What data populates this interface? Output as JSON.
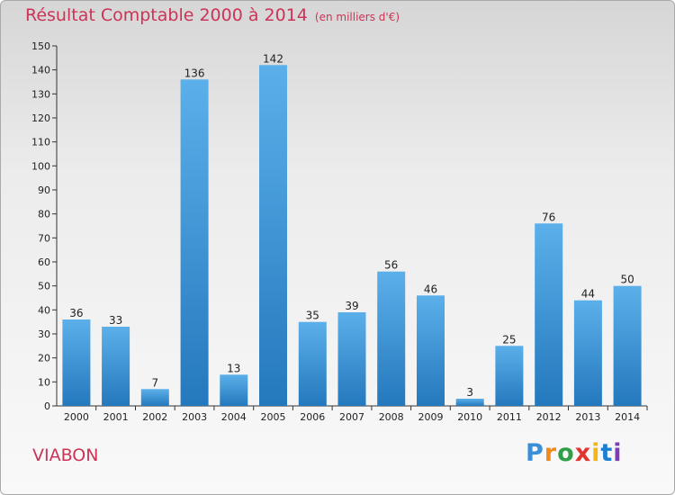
{
  "chart_data": {
    "type": "bar",
    "title": "Résultat Comptable 2000 à 2014",
    "subtitle": "(en milliers d'€)",
    "categories": [
      "2000",
      "2001",
      "2002",
      "2003",
      "2004",
      "2005",
      "2006",
      "2007",
      "2008",
      "2009",
      "2010",
      "2011",
      "2012",
      "2013",
      "2014"
    ],
    "values": [
      36,
      33,
      7,
      136,
      13,
      142,
      35,
      39,
      56,
      46,
      3,
      25,
      76,
      44,
      50
    ],
    "ylim": [
      0,
      150
    ],
    "yticks": [
      0,
      10,
      20,
      30,
      40,
      50,
      60,
      70,
      80,
      90,
      100,
      110,
      120,
      130,
      140,
      150
    ],
    "xlabel": "",
    "ylabel": "",
    "grid": false,
    "legend": "none"
  },
  "footer": {
    "commune": "VIABON",
    "logo_letters": [
      "P",
      "r",
      "o",
      "x",
      "i",
      "t",
      "i"
    ]
  },
  "colors": {
    "bar_light": "#5bb0ea",
    "bar_dark": "#2478bd",
    "title": "#cc3355",
    "axis": "#333333",
    "logo": [
      "#3a8fd9",
      "#f08c1e",
      "#2e9e47",
      "#e2332f",
      "#f2b51c",
      "#1c7fd0",
      "#7c3fb1"
    ]
  }
}
